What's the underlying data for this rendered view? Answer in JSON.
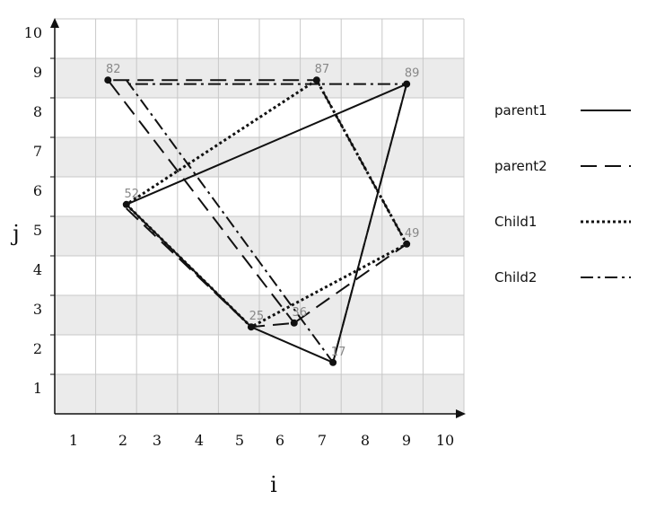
{
  "chart_data": {
    "type": "line",
    "xlabel": "i",
    "ylabel": "j",
    "xlim": [
      0,
      10
    ],
    "ylim": [
      0,
      10
    ],
    "grid": true,
    "legend_position": "right",
    "x_ticks": [
      "1",
      "2",
      "3",
      "4",
      "5",
      "6",
      "7",
      "8",
      "9",
      "10"
    ],
    "y_ticks": [
      "1",
      "2",
      "3",
      "4",
      "5",
      "6",
      "7",
      "8",
      "9",
      "10"
    ],
    "nodes": [
      {
        "label": "82",
        "x": 1.3,
        "y": 8.45
      },
      {
        "label": "87",
        "x": 6.4,
        "y": 8.45
      },
      {
        "label": "89",
        "x": 8.6,
        "y": 8.35
      },
      {
        "label": "52",
        "x": 1.75,
        "y": 5.3
      },
      {
        "label": "49",
        "x": 8.6,
        "y": 4.3
      },
      {
        "label": "25",
        "x": 4.8,
        "y": 2.2
      },
      {
        "label": "36",
        "x": 5.85,
        "y": 2.3
      },
      {
        "label": "17",
        "x": 6.8,
        "y": 1.3
      }
    ],
    "series": [
      {
        "name": "parent1",
        "style": "solid",
        "points": [
          [
            1.75,
            5.3
          ],
          [
            4.8,
            2.2
          ],
          [
            6.8,
            1.3
          ],
          [
            8.6,
            8.35
          ],
          [
            1.75,
            5.3
          ]
        ]
      },
      {
        "name": "parent2",
        "style": "dashed",
        "points": [
          [
            1.75,
            5.2
          ],
          [
            4.8,
            2.2
          ],
          [
            5.85,
            2.3
          ],
          [
            8.6,
            4.3
          ],
          [
            6.4,
            8.45
          ],
          [
            1.3,
            8.45
          ],
          [
            5.85,
            2.3
          ]
        ]
      },
      {
        "name": "Child1",
        "style": "dotted",
        "points": [
          [
            1.75,
            5.3
          ],
          [
            4.8,
            2.2
          ],
          [
            8.6,
            4.3
          ],
          [
            6.4,
            8.45
          ],
          [
            1.75,
            5.3
          ]
        ]
      },
      {
        "name": "Child2",
        "style": "dashdot",
        "points": [
          [
            1.75,
            8.45
          ],
          [
            6.8,
            1.3
          ],
          [
            8.6,
            8.35
          ],
          [
            1.75,
            8.35
          ]
        ]
      }
    ]
  },
  "legend": [
    {
      "label": "parent1",
      "style": "solid"
    },
    {
      "label": "parent2",
      "style": "dashed"
    },
    {
      "label": "Child1",
      "style": "dotted"
    },
    {
      "label": "Child2",
      "style": "dashdot"
    }
  ],
  "colors": {
    "line": "#111111",
    "band": "#ebebeb",
    "grid": "#c8c8c8",
    "node_label": "#888888"
  }
}
